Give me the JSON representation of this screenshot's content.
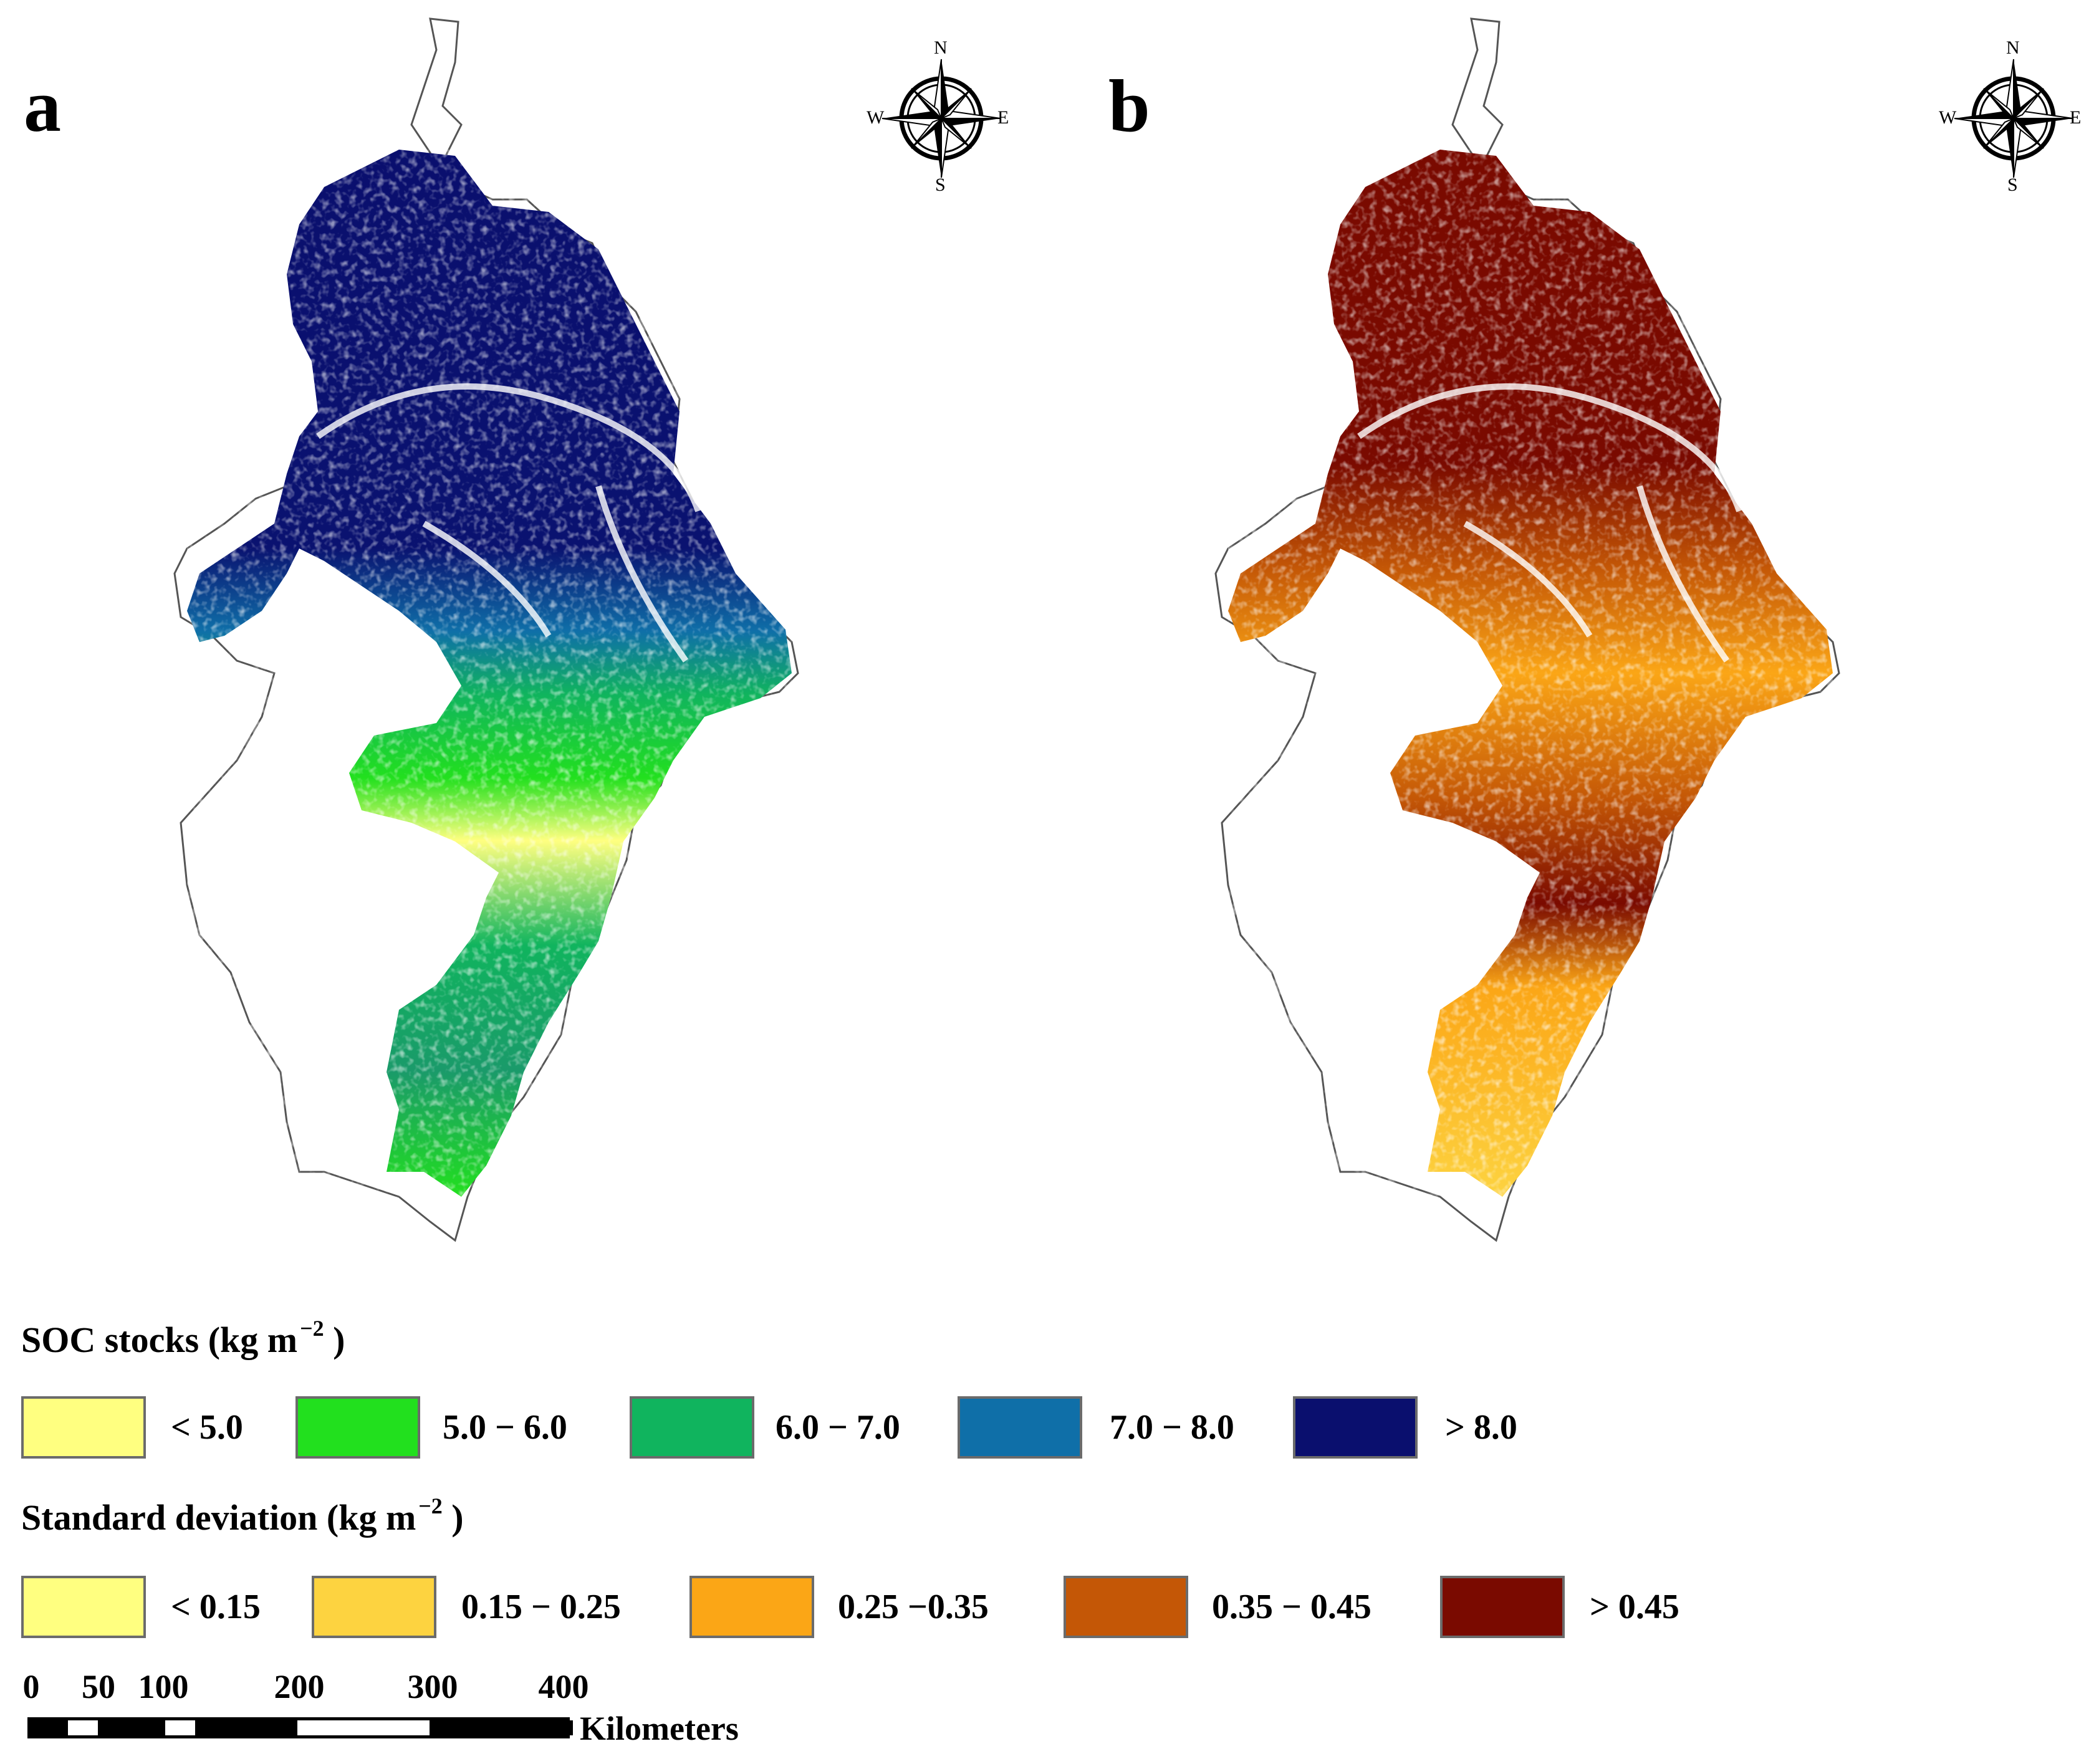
{
  "panels": [
    {
      "letter": "a"
    },
    {
      "letter": "b"
    }
  ],
  "compass": {
    "n": "N",
    "s": "S",
    "e": "E",
    "w": "W",
    "icon": "compass-rose-icon"
  },
  "legend_soc": {
    "title": "SOC stocks (kg m",
    "exponent": "−2",
    "close": ")",
    "classes": [
      {
        "label": "< 5.0",
        "color": "#ffff80"
      },
      {
        "label": "5.0 − 6.0",
        "color": "#22e01e"
      },
      {
        "label": "6.0 − 7.0",
        "color": "#10b45e"
      },
      {
        "label": "7.0 − 8.0",
        "color": "#0f6fa8"
      },
      {
        "label": "> 8.0",
        "color": "#0a0f6e"
      }
    ]
  },
  "legend_sd": {
    "title": "Standard deviation (kg m",
    "exponent": "−2",
    "close": ")",
    "classes": [
      {
        "label": "< 0.15",
        "color": "#ffff80"
      },
      {
        "label": "0.15 − 0.25",
        "color": "#fdd340"
      },
      {
        "label": "0.25 −0.35",
        "color": "#fba616"
      },
      {
        "label": "0.35 − 0.45",
        "color": "#c45706"
      },
      {
        "label": "> 0.45",
        "color": "#7a0a00"
      }
    ]
  },
  "scale": {
    "ticks": [
      "0",
      "50",
      "100",
      "200",
      "300",
      "400"
    ],
    "unit": "Kilometers"
  }
}
